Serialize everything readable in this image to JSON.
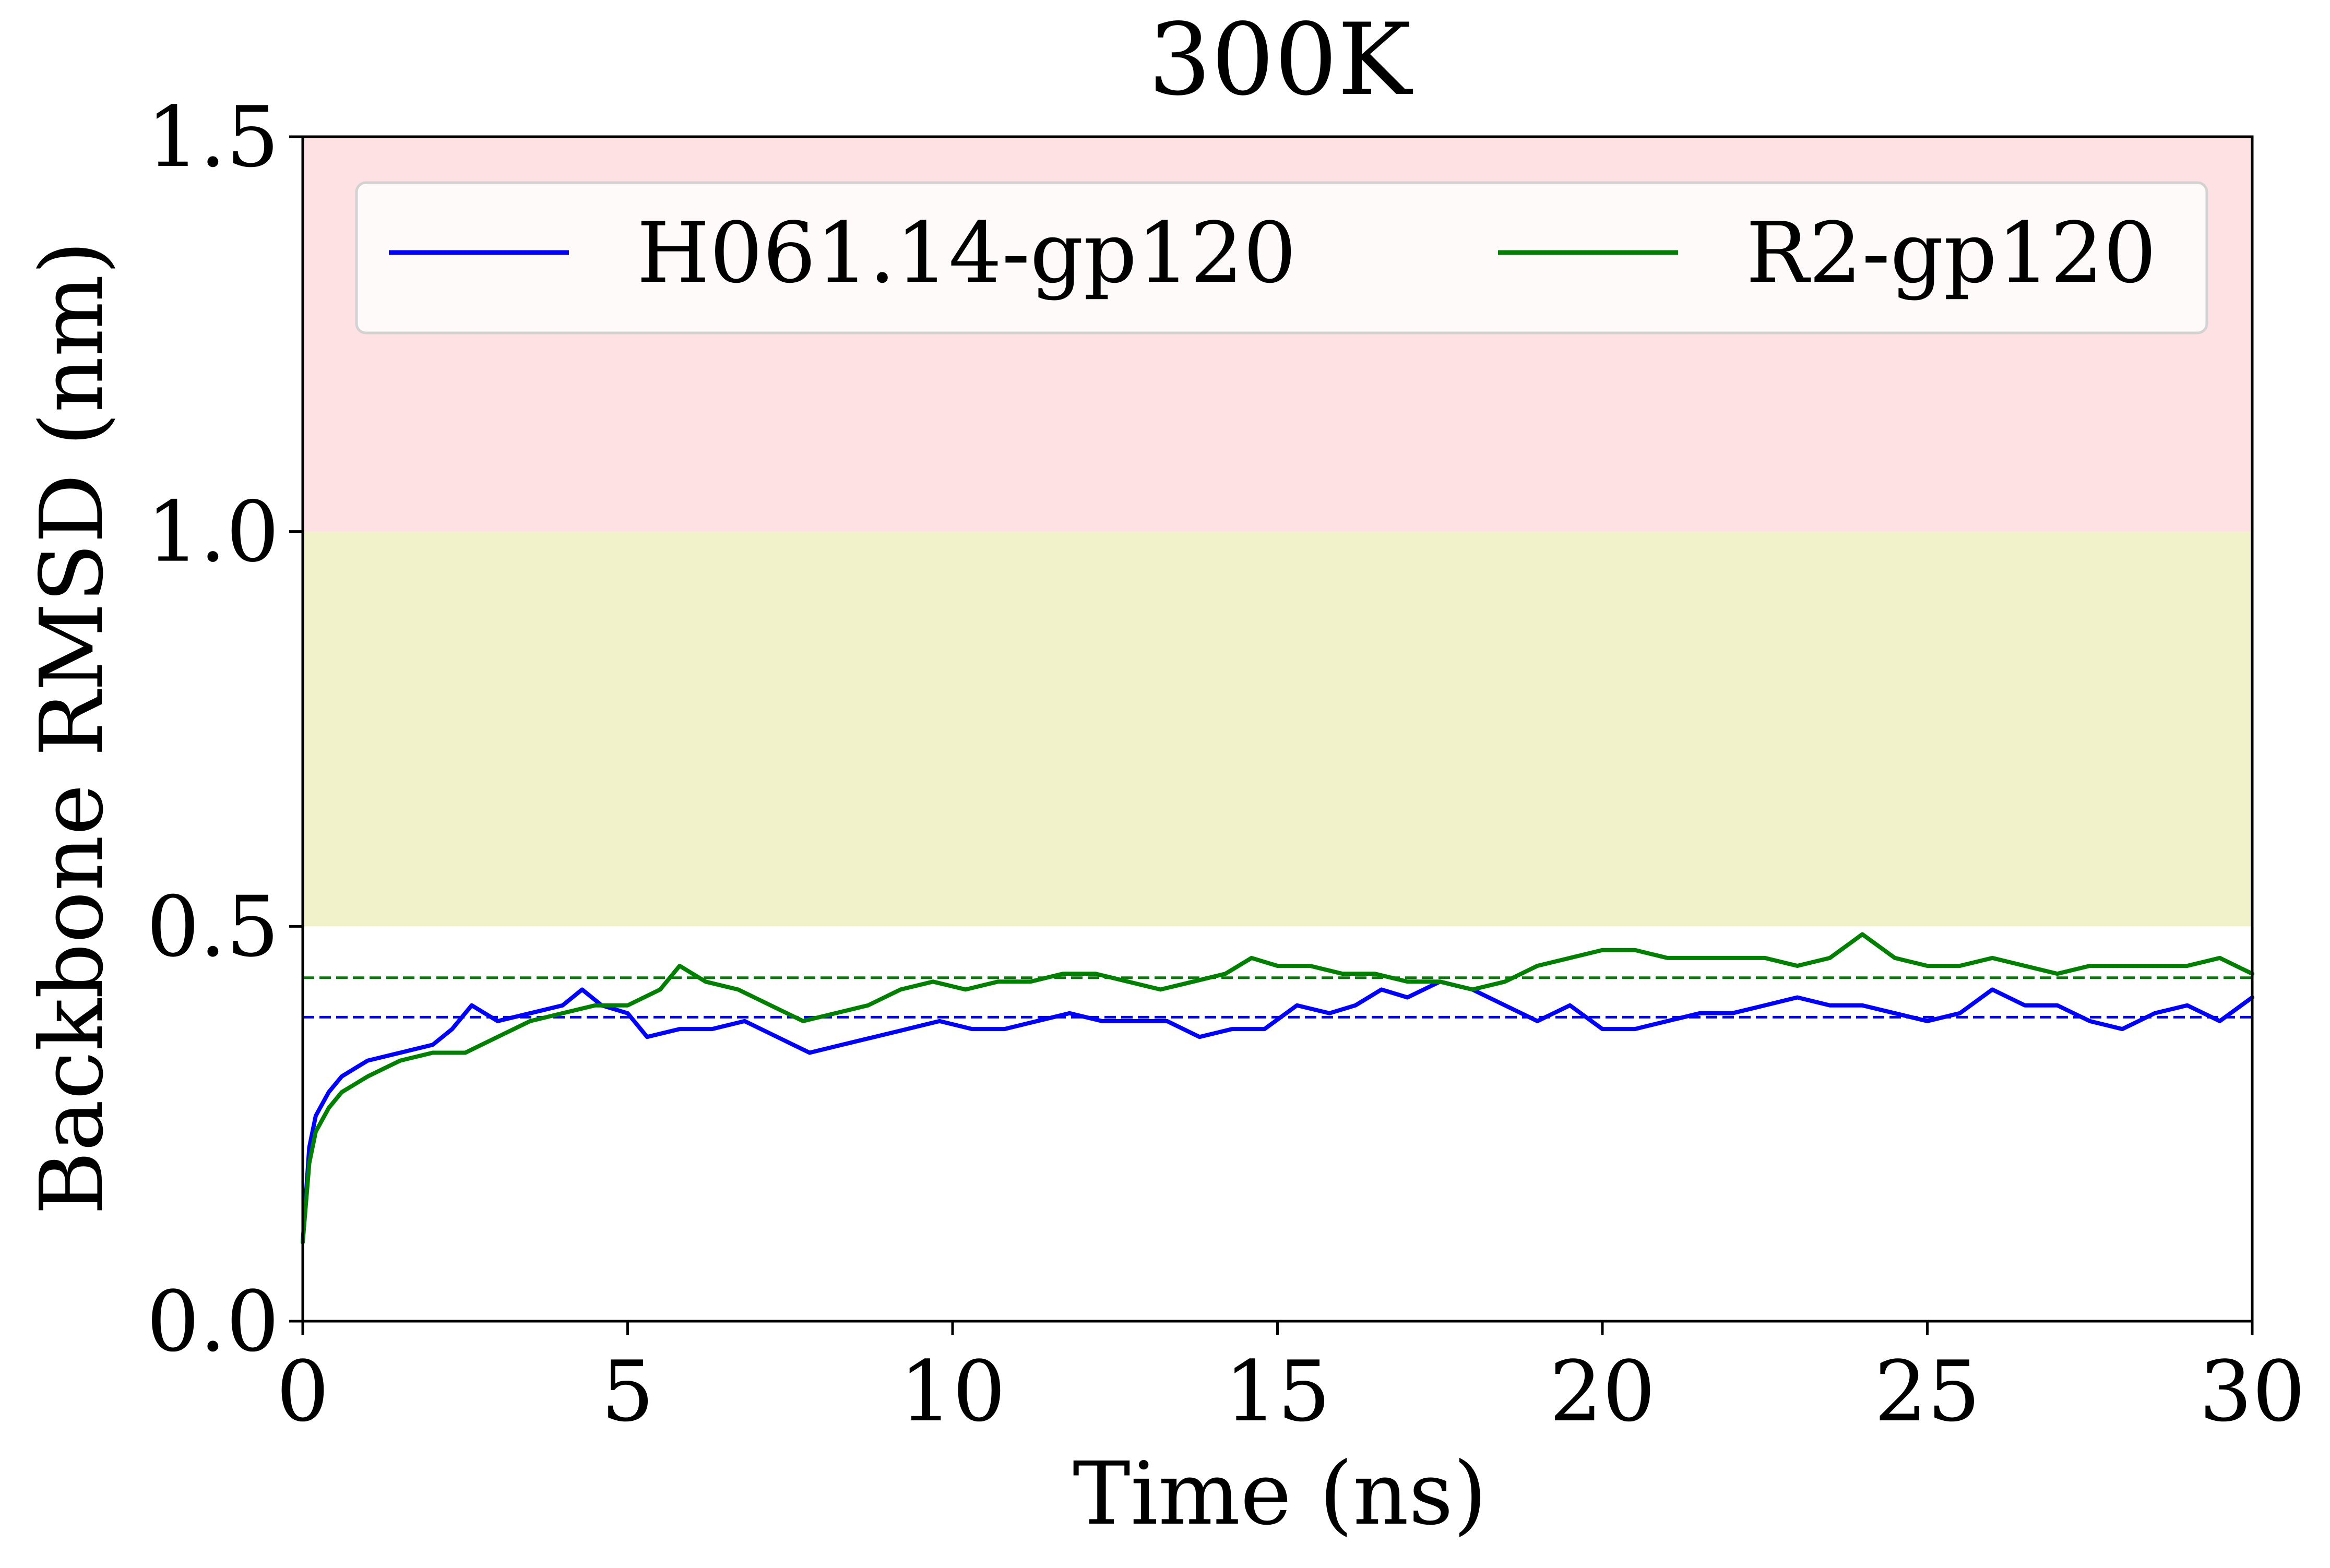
{
  "chart_data": {
    "type": "line",
    "title": "300K",
    "xlabel": "Time (ns)",
    "ylabel": "Backbone RMSD (nm)",
    "xlim": [
      0,
      30
    ],
    "ylim": [
      0,
      1.5
    ],
    "xticks": [
      0,
      5,
      10,
      15,
      20,
      25,
      30
    ],
    "xtick_labels": [
      "0",
      "5",
      "10",
      "15",
      "20",
      "25",
      "30"
    ],
    "yticks": [
      0.0,
      0.5,
      1.0,
      1.5
    ],
    "ytick_labels": [
      "0.0",
      "0.5",
      "1.0",
      "1.5"
    ],
    "grid": false,
    "legend": {
      "placement": "top",
      "columns": 2
    },
    "background_bands": [
      {
        "y_from": 0.5,
        "y_to": 1.0,
        "color": "#f1f2ca"
      },
      {
        "y_from": 1.0,
        "y_to": 1.5,
        "color": "#fee2e3"
      }
    ],
    "series": [
      {
        "name": "H061.14-gp120",
        "color": "#0000ff",
        "mean": 0.385,
        "x": [
          0,
          0.1,
          0.2,
          0.4,
          0.6,
          0.8,
          1.0,
          1.5,
          2.0,
          2.3,
          2.6,
          3.0,
          3.5,
          4.0,
          4.3,
          4.6,
          5.0,
          5.3,
          5.8,
          6.3,
          6.8,
          7.3,
          7.8,
          8.3,
          8.8,
          9.3,
          9.8,
          10.3,
          10.8,
          11.3,
          11.8,
          12.3,
          12.8,
          13.3,
          13.8,
          14.3,
          14.8,
          15.3,
          15.8,
          16.2,
          16.6,
          17.0,
          17.5,
          18.0,
          18.5,
          19.0,
          19.5,
          20.0,
          20.5,
          21.0,
          21.5,
          22.0,
          22.5,
          23.0,
          23.5,
          24.0,
          24.5,
          25.0,
          25.5,
          26.0,
          26.5,
          27.0,
          27.5,
          28.0,
          28.5,
          29.0,
          29.5,
          30.0
        ],
        "y": [
          0.1,
          0.22,
          0.26,
          0.29,
          0.31,
          0.32,
          0.33,
          0.34,
          0.35,
          0.37,
          0.4,
          0.38,
          0.39,
          0.4,
          0.42,
          0.4,
          0.39,
          0.36,
          0.37,
          0.37,
          0.38,
          0.36,
          0.34,
          0.35,
          0.36,
          0.37,
          0.38,
          0.37,
          0.37,
          0.38,
          0.39,
          0.38,
          0.38,
          0.38,
          0.36,
          0.37,
          0.37,
          0.4,
          0.39,
          0.4,
          0.42,
          0.41,
          0.43,
          0.42,
          0.4,
          0.38,
          0.4,
          0.37,
          0.37,
          0.38,
          0.39,
          0.39,
          0.4,
          0.41,
          0.4,
          0.4,
          0.39,
          0.38,
          0.39,
          0.42,
          0.4,
          0.4,
          0.38,
          0.37,
          0.39,
          0.4,
          0.38,
          0.41
        ]
      },
      {
        "name": "R2-gp120",
        "color": "#008000",
        "mean": 0.435,
        "x": [
          0,
          0.1,
          0.2,
          0.4,
          0.6,
          0.8,
          1.0,
          1.5,
          2.0,
          2.5,
          3.0,
          3.5,
          4.0,
          4.5,
          5.0,
          5.5,
          5.8,
          6.2,
          6.7,
          7.2,
          7.7,
          8.2,
          8.7,
          9.2,
          9.7,
          10.2,
          10.7,
          11.2,
          11.7,
          12.2,
          12.7,
          13.2,
          13.7,
          14.2,
          14.6,
          15.0,
          15.5,
          16.0,
          16.5,
          17.0,
          17.5,
          18.0,
          18.5,
          19.0,
          19.5,
          20.0,
          20.5,
          21.0,
          21.5,
          22.0,
          22.5,
          23.0,
          23.5,
          24.0,
          24.5,
          25.0,
          25.5,
          26.0,
          26.5,
          27.0,
          27.5,
          28.0,
          28.5,
          29.0,
          29.5,
          30.0
        ],
        "y": [
          0.1,
          0.2,
          0.24,
          0.27,
          0.29,
          0.3,
          0.31,
          0.33,
          0.34,
          0.34,
          0.36,
          0.38,
          0.39,
          0.4,
          0.4,
          0.42,
          0.45,
          0.43,
          0.42,
          0.4,
          0.38,
          0.39,
          0.4,
          0.42,
          0.43,
          0.42,
          0.43,
          0.43,
          0.44,
          0.44,
          0.43,
          0.42,
          0.43,
          0.44,
          0.46,
          0.45,
          0.45,
          0.44,
          0.44,
          0.43,
          0.43,
          0.42,
          0.43,
          0.45,
          0.46,
          0.47,
          0.47,
          0.46,
          0.46,
          0.46,
          0.46,
          0.45,
          0.46,
          0.49,
          0.46,
          0.45,
          0.45,
          0.46,
          0.45,
          0.44,
          0.45,
          0.45,
          0.45,
          0.45,
          0.46,
          0.44
        ]
      }
    ]
  }
}
